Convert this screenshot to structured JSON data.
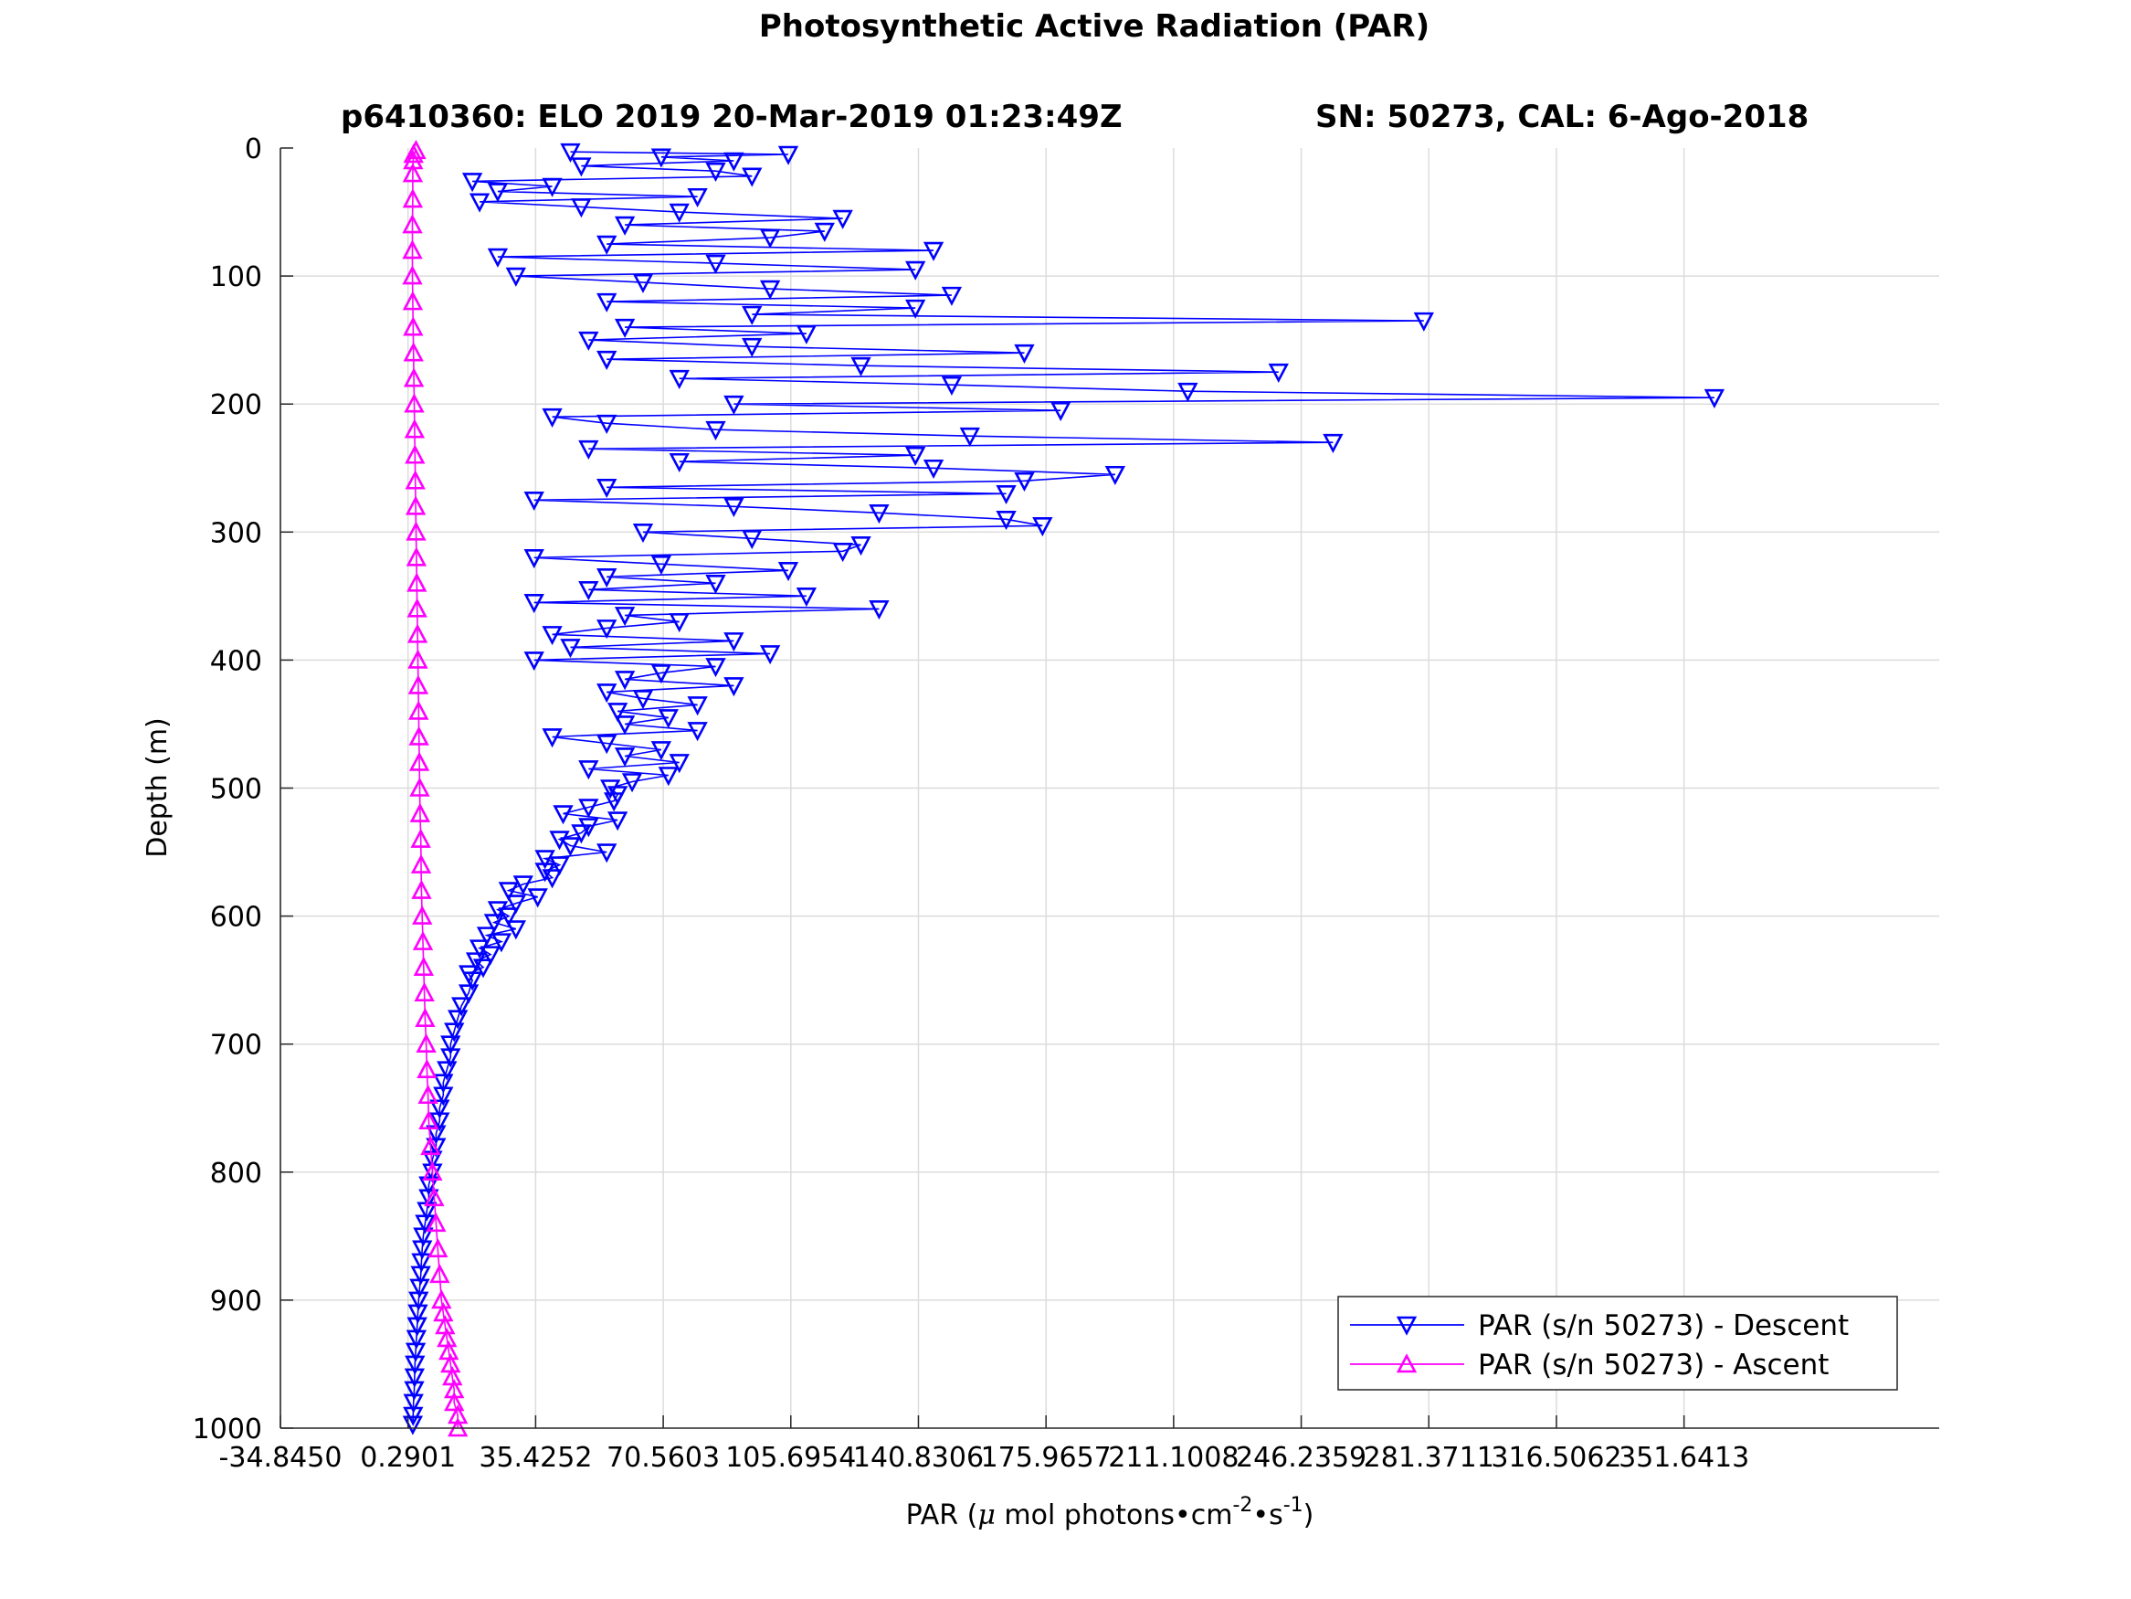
{
  "chart_data": {
    "type": "line",
    "title": "Photosynthetic Active Radiation (PAR)",
    "subtitle_left": "p6410360: ELO 2019 20-Mar-2019 01:23:49Z",
    "subtitle_right": "SN: 50273, CAL: 6-Ago-2018",
    "xlabel": "PAR (μ mol photons•cm⁻²•s⁻¹)",
    "xlabel_parts": {
      "a": "PAR (",
      "mu": "μ",
      "b": " mol photons•cm",
      "sup1": "-2",
      "c": "•s",
      "sup2": "-1",
      "d": ")"
    },
    "ylabel": "Depth (m)",
    "xlim": [
      -34.845,
      421.9
    ],
    "ylim": [
      0,
      1000
    ],
    "y_reversed": true,
    "grid": true,
    "legend_position": "bottom-right",
    "x_ticks": [
      -34.845,
      0.2901,
      35.4252,
      70.5603,
      105.6954,
      140.8306,
      175.9657,
      211.1008,
      246.2359,
      281.3711,
      316.5062,
      351.6413
    ],
    "x_tick_labels": [
      "-34.8450",
      "0.2901",
      "35.4252",
      "70.5603",
      "105.6954",
      "140.8306",
      "175.9657",
      "211.1008",
      "246.2359",
      "281.3711",
      "316.5062",
      "351.6413"
    ],
    "y_ticks": [
      0,
      100,
      200,
      300,
      400,
      500,
      600,
      700,
      800,
      900,
      1000
    ],
    "y_tick_labels": [
      "0",
      "100",
      "200",
      "300",
      "400",
      "500",
      "600",
      "700",
      "800",
      "900",
      "1000"
    ],
    "series": [
      {
        "name": "PAR (s/n 50273) - Descent",
        "color": "#0000ff",
        "marker": "triangle-down",
        "depth": [
          3,
          5,
          7,
          10,
          14,
          18,
          22,
          26,
          30,
          34,
          38,
          42,
          46,
          50,
          55,
          60,
          65,
          70,
          75,
          80,
          85,
          90,
          95,
          100,
          105,
          110,
          115,
          120,
          125,
          130,
          135,
          140,
          145,
          150,
          155,
          160,
          165,
          170,
          175,
          180,
          185,
          190,
          195,
          200,
          205,
          210,
          215,
          220,
          225,
          230,
          235,
          240,
          245,
          250,
          255,
          260,
          265,
          270,
          275,
          280,
          285,
          290,
          295,
          300,
          305,
          310,
          315,
          320,
          325,
          330,
          335,
          340,
          345,
          350,
          355,
          360,
          365,
          370,
          375,
          380,
          385,
          390,
          395,
          400,
          405,
          410,
          415,
          420,
          425,
          430,
          435,
          440,
          445,
          450,
          455,
          460,
          465,
          470,
          475,
          480,
          485,
          490,
          495,
          500,
          505,
          510,
          515,
          520,
          525,
          530,
          535,
          540,
          545,
          550,
          555,
          560,
          565,
          570,
          575,
          580,
          585,
          590,
          595,
          600,
          605,
          610,
          615,
          620,
          625,
          630,
          635,
          640,
          645,
          650,
          660,
          670,
          680,
          690,
          700,
          710,
          720,
          730,
          740,
          750,
          760,
          770,
          780,
          790,
          800,
          810,
          820,
          830,
          840,
          850,
          860,
          870,
          880,
          890,
          900,
          910,
          920,
          930,
          940,
          950,
          960,
          970,
          980,
          990,
          997
        ],
        "par": [
          45,
          105,
          70,
          90,
          48,
          85,
          95,
          18,
          40,
          25,
          80,
          20,
          48,
          75,
          120,
          60,
          115,
          100,
          55,
          145,
          25,
          85,
          140,
          30,
          65,
          100,
          150,
          55,
          140,
          95,
          280,
          60,
          110,
          50,
          95,
          170,
          55,
          125,
          240,
          75,
          150,
          215,
          360,
          90,
          180,
          40,
          55,
          85,
          155,
          255,
          50,
          140,
          75,
          145,
          195,
          170,
          55,
          165,
          35,
          90,
          130,
          165,
          175,
          65,
          95,
          125,
          120,
          35,
          70,
          105,
          55,
          85,
          50,
          110,
          35,
          130,
          60,
          75,
          55,
          40,
          90,
          45,
          100,
          35,
          85,
          70,
          60,
          90,
          55,
          65,
          80,
          58,
          72,
          60,
          80,
          40,
          55,
          70,
          60,
          75,
          50,
          72,
          62,
          56,
          58,
          57,
          50,
          43,
          58,
          50,
          48,
          42,
          45,
          55,
          38,
          42,
          38,
          40,
          32,
          28,
          36,
          30,
          25,
          28,
          24,
          30,
          22,
          26,
          20,
          23,
          19,
          21,
          17,
          18,
          17,
          15,
          14,
          13,
          12,
          12,
          11,
          10,
          10,
          9,
          9,
          8,
          8,
          7,
          7,
          6,
          6,
          5.5,
          5,
          4.5,
          4.2,
          4,
          3.8,
          3.5,
          3.2,
          3,
          2.8,
          2.6,
          2.4,
          2.2,
          2.1,
          2,
          1.8,
          1.7,
          1.6
        ]
      },
      {
        "name": "PAR (s/n 50273) - Ascent",
        "color": "#ff00ff",
        "marker": "triangle-up",
        "depth": [
          1000,
          990,
          980,
          970,
          960,
          950,
          940,
          930,
          920,
          910,
          900,
          880,
          860,
          840,
          820,
          800,
          780,
          760,
          740,
          720,
          700,
          680,
          660,
          640,
          620,
          600,
          580,
          560,
          540,
          520,
          500,
          480,
          460,
          440,
          420,
          400,
          380,
          360,
          340,
          320,
          300,
          280,
          260,
          240,
          220,
          200,
          180,
          160,
          140,
          120,
          100,
          80,
          60,
          40,
          20,
          10,
          5,
          2
        ],
        "par": [
          14,
          14,
          13,
          13,
          12.5,
          12,
          11.5,
          11,
          10.5,
          10,
          9.5,
          9,
          8.5,
          8,
          7.5,
          7,
          6.5,
          6,
          5.8,
          5.5,
          5.3,
          5,
          4.8,
          4.6,
          4.4,
          4.2,
          4,
          3.9,
          3.8,
          3.6,
          3.5,
          3.4,
          3.3,
          3.2,
          3.1,
          3,
          2.9,
          2.8,
          2.7,
          2.6,
          2.5,
          2.4,
          2.3,
          2.2,
          2.1,
          2,
          1.9,
          1.8,
          1.7,
          1.6,
          1.5,
          1.5,
          1.5,
          1.6,
          1.6,
          1.7,
          1.8,
          2.5
        ]
      }
    ]
  }
}
